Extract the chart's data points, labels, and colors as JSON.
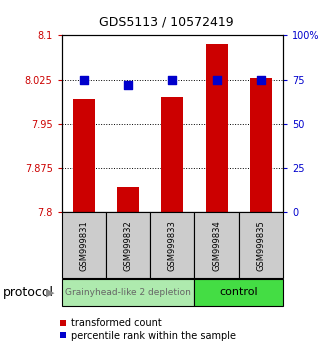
{
  "title": "GDS5113 / 10572419",
  "samples": [
    "GSM999831",
    "GSM999832",
    "GSM999833",
    "GSM999834",
    "GSM999835"
  ],
  "red_values": [
    7.993,
    7.843,
    7.995,
    8.085,
    8.028
  ],
  "blue_values": [
    75,
    72,
    75,
    75,
    75
  ],
  "ylim_left": [
    7.8,
    8.1
  ],
  "ylim_right": [
    0,
    100
  ],
  "yticks_left": [
    7.8,
    7.875,
    7.95,
    8.025,
    8.1
  ],
  "yticks_right": [
    0,
    25,
    50,
    75,
    100
  ],
  "ytick_labels_left": [
    "7.8",
    "7.875",
    "7.95",
    "8.025",
    "8.1"
  ],
  "ytick_labels_right": [
    "0",
    "25",
    "50",
    "75",
    "100%"
  ],
  "group1_label": "Grainyhead-like 2 depletion",
  "group2_label": "control",
  "group1_color": "#aeeaae",
  "group2_color": "#44dd44",
  "group1_text_color": "#666666",
  "group2_text_color": "#000000",
  "protocol_label": "protocol",
  "legend_red": "transformed count",
  "legend_blue": "percentile rank within the sample",
  "bar_color": "#cc0000",
  "dot_color": "#0000cc",
  "bar_width": 0.5,
  "dot_size": 30,
  "tick_color_left": "#cc0000",
  "tick_color_right": "#0000cc",
  "sample_box_color": "#cccccc",
  "title_fontsize": 9,
  "tick_fontsize": 7,
  "sample_fontsize": 6,
  "legend_fontsize": 7,
  "protocol_fontsize": 9,
  "group_fontsize": 6.5
}
